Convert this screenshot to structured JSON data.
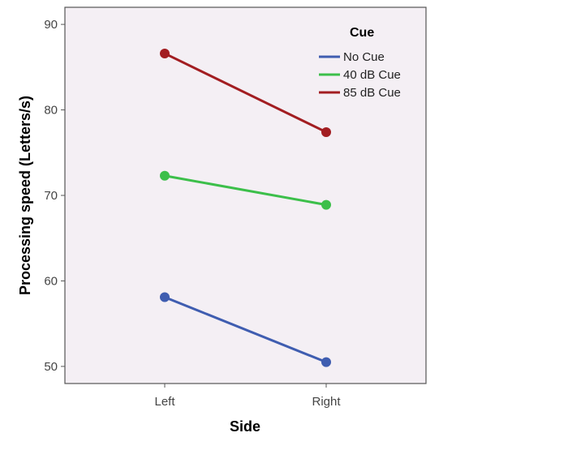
{
  "chart_data": {
    "type": "line",
    "xlabel": "Side",
    "ylabel": "Processing speed (Letters/s)",
    "categories": [
      "Left",
      "Right"
    ],
    "ylim": [
      48,
      92
    ],
    "yticks": [
      50,
      60,
      70,
      80,
      90
    ],
    "grid": false,
    "legend": {
      "title": "Cue",
      "placement": "top-right"
    },
    "series": [
      {
        "name": "No Cue",
        "color": "#3f5db0",
        "values": [
          58.1,
          50.5
        ]
      },
      {
        "name": "40 dB Cue",
        "color": "#3cbf4a",
        "values": [
          72.3,
          68.9
        ]
      },
      {
        "name": "85 dB Cue",
        "color": "#a21d21",
        "values": [
          86.6,
          77.4
        ]
      }
    ],
    "colors": {
      "plot_background": "#f4eff4",
      "frame": "#555555"
    }
  }
}
